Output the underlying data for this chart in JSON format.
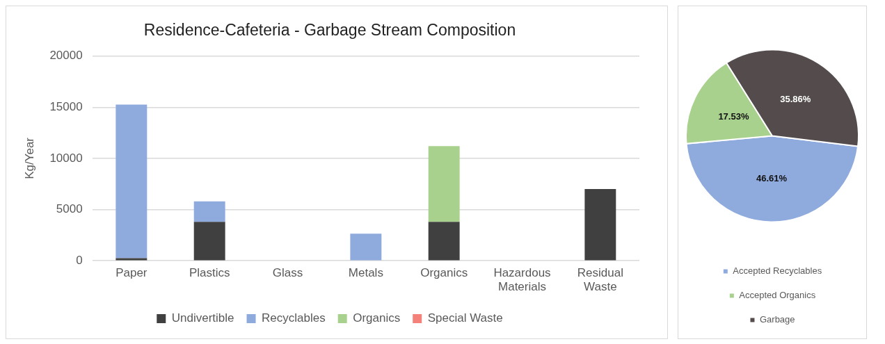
{
  "chart_data": [
    {
      "type": "bar",
      "title": "Residence-Cafeteria - Garbage Stream Composition",
      "ylabel": "Kg/Year",
      "categories": [
        "Paper",
        "Plastics",
        "Glass",
        "Metals",
        "Organics",
        "Hazardous Materials",
        "Residual Waste"
      ],
      "stacked": true,
      "series": [
        {
          "name": "Undivertible",
          "color": "#404040",
          "values": [
            250,
            3800,
            0,
            0,
            3800,
            0,
            7000
          ]
        },
        {
          "name": "Recyclables",
          "color": "#8faadc",
          "values": [
            15000,
            2000,
            0,
            2650,
            0,
            0,
            0
          ]
        },
        {
          "name": "Organics",
          "color": "#a9d18e",
          "values": [
            0,
            0,
            0,
            0,
            7400,
            0,
            0
          ]
        },
        {
          "name": "Special Waste",
          "color": "#f4817a",
          "values": [
            0,
            0,
            0,
            0,
            0,
            0,
            0
          ]
        }
      ],
      "ylim": [
        0,
        20000
      ],
      "yticks": [
        0,
        5000,
        10000,
        15000,
        20000
      ],
      "grid": "y",
      "legend": "bottom"
    },
    {
      "type": "pie",
      "categories": [
        "Accepted Recyclables",
        "Accepted Organics",
        "Garbage"
      ],
      "values": [
        46.61,
        17.53,
        35.86
      ],
      "colors": [
        "#8faadc",
        "#a9d18e",
        "#544c4c"
      ],
      "value_labels": [
        "46.61%",
        "17.53%",
        "35.86%"
      ],
      "legend": "bottom"
    }
  ]
}
